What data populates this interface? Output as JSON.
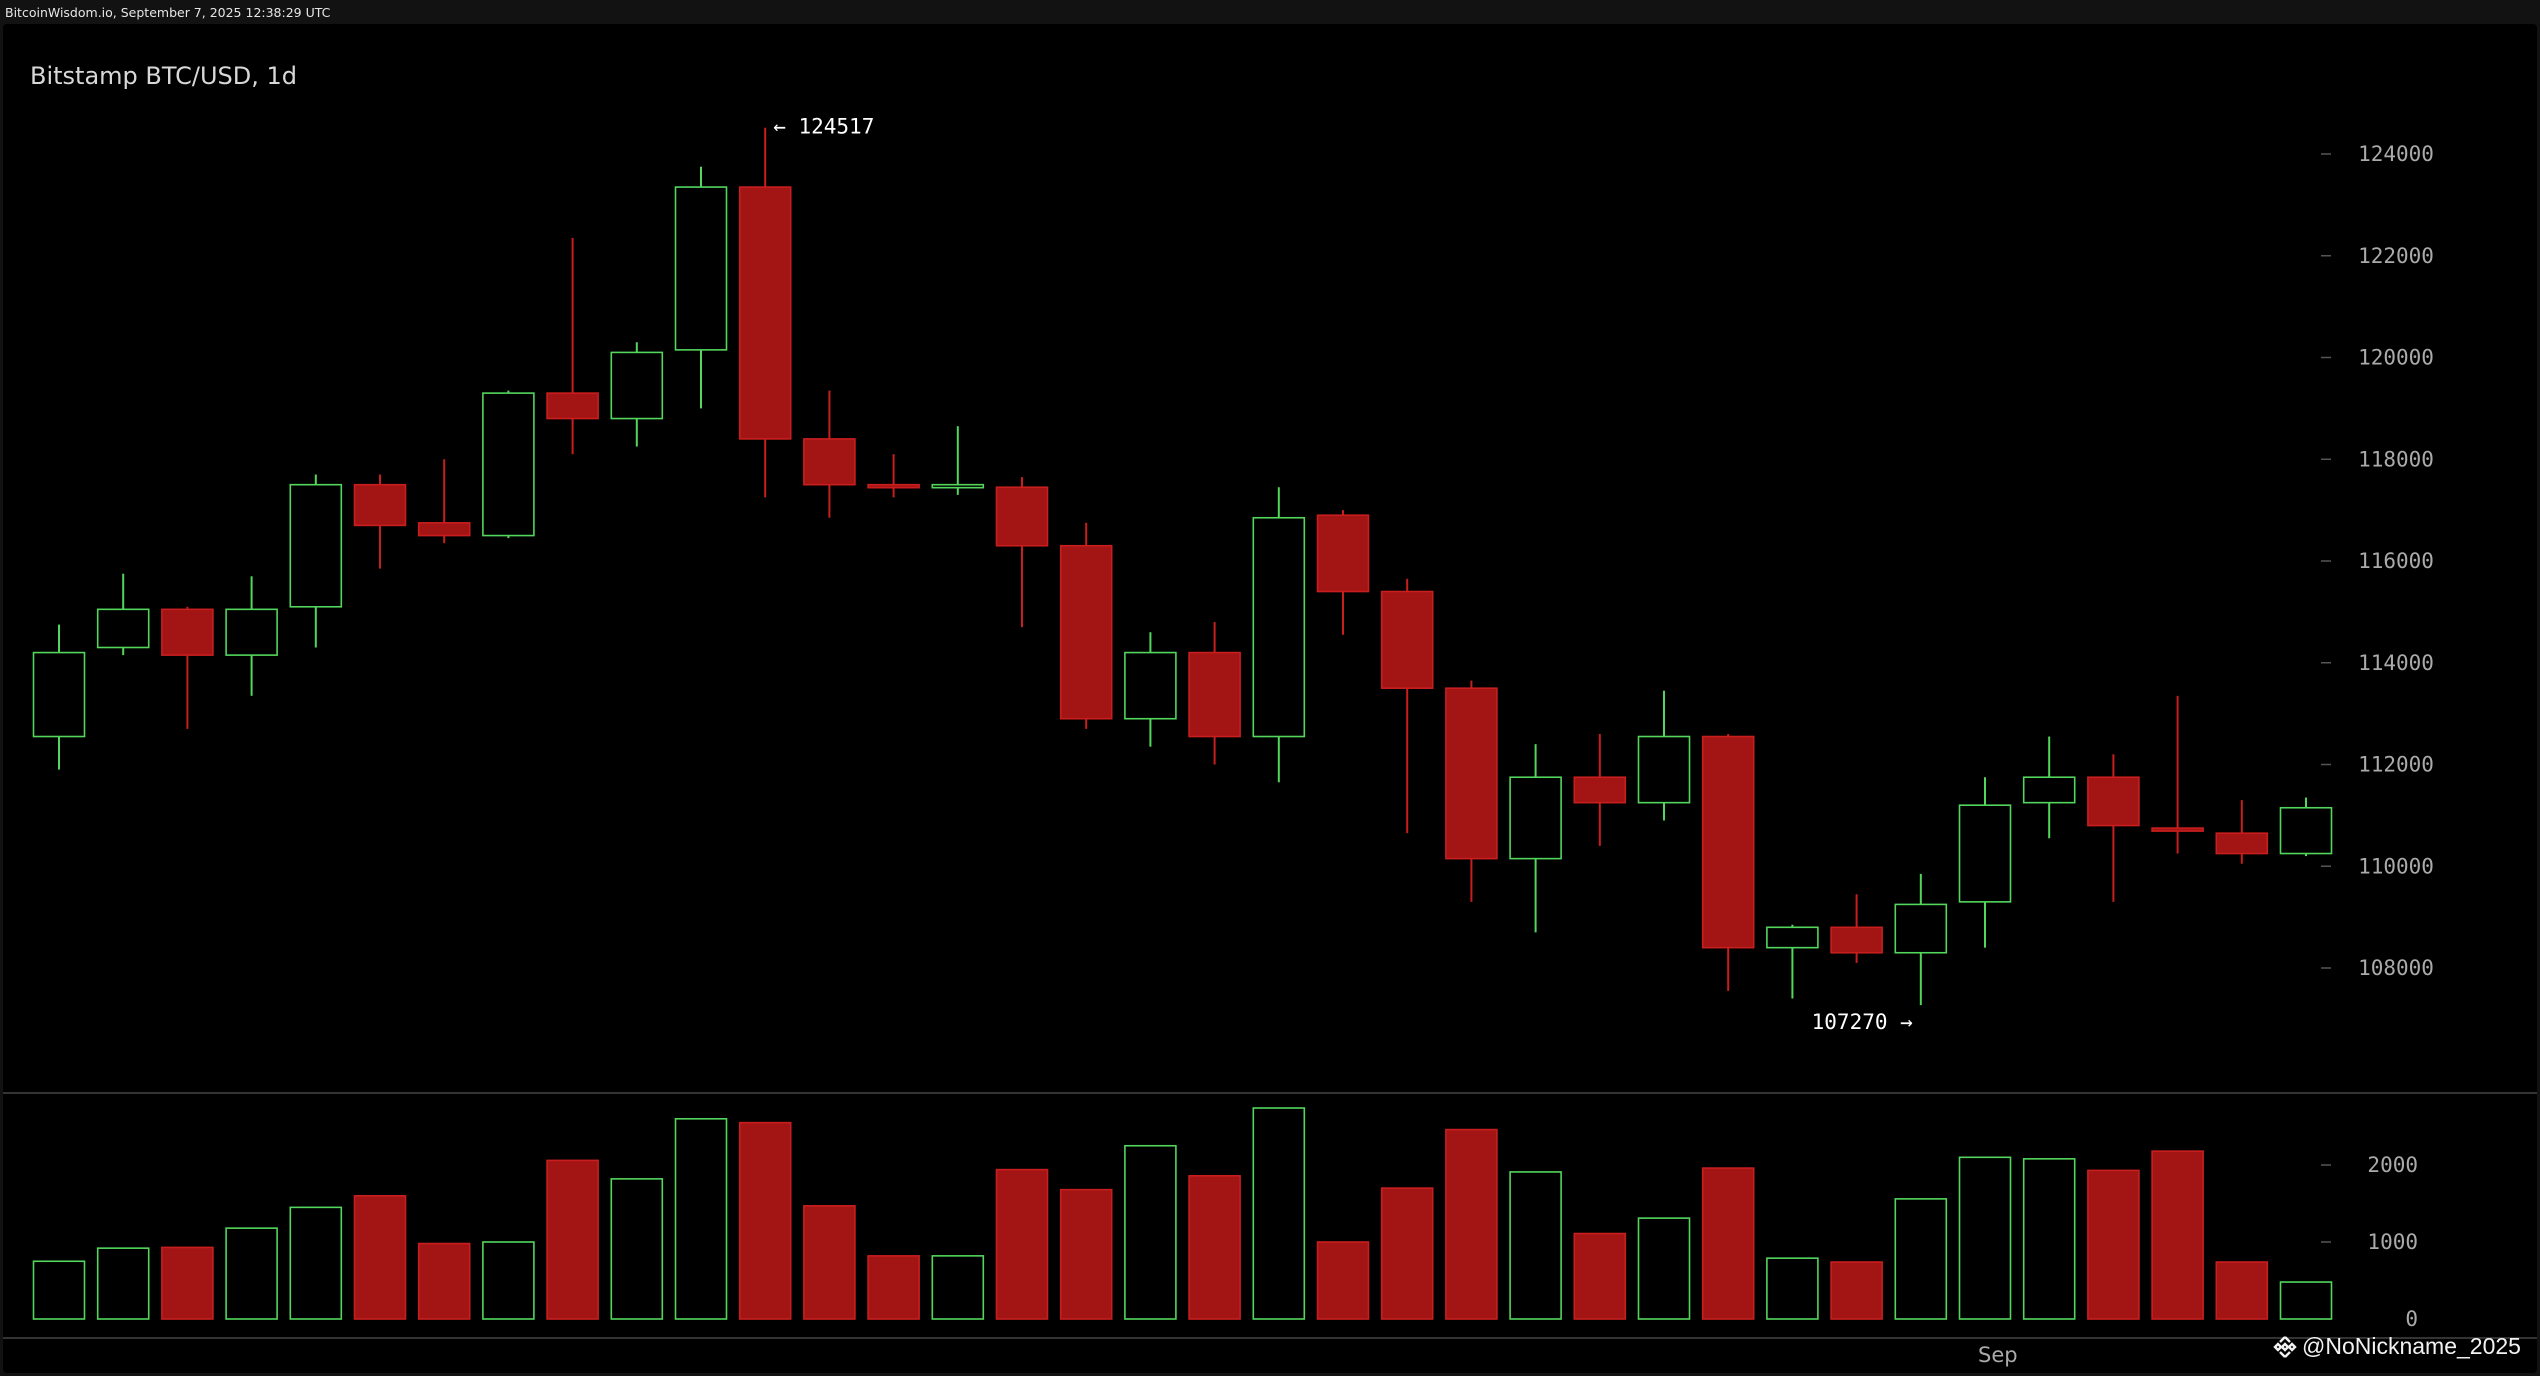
{
  "site_stamp": "BitcoinWisdom.io, September 7, 2025 12:38:29 UTC",
  "watermark": "@NoNickname_2025",
  "colors": {
    "background": "#000000",
    "up": "#52d65c",
    "down": "#a31414",
    "down_border": "#c81e1e",
    "axis_text": "#aaaaaa",
    "annotation": "#ffffff"
  },
  "chart_data": {
    "type": "candlestick",
    "title": "Bitstamp BTC/USD, 1d",
    "price_axis": {
      "ticks": [
        108000,
        110000,
        112000,
        114000,
        116000,
        118000,
        120000,
        122000,
        124000
      ]
    },
    "volume_axis": {
      "ticks": [
        0,
        1000,
        2000
      ]
    },
    "x_axis": {
      "labels": [
        {
          "text": "Sep",
          "index": 30.2
        }
      ]
    },
    "annotations": [
      {
        "text": "← 124517",
        "index": 11,
        "price": 124517,
        "side": "right"
      },
      {
        "text": "107270 →",
        "index": 29,
        "price": 107270,
        "side": "left"
      }
    ],
    "candles": [
      {
        "o": 112550,
        "h": 114750,
        "l": 111900,
        "c": 114200,
        "v": 750
      },
      {
        "o": 114300,
        "h": 115750,
        "l": 114150,
        "c": 115050,
        "v": 920
      },
      {
        "o": 115050,
        "h": 115100,
        "l": 112700,
        "c": 114150,
        "v": 930
      },
      {
        "o": 114150,
        "h": 115700,
        "l": 113350,
        "c": 115050,
        "v": 1180
      },
      {
        "o": 115100,
        "h": 117700,
        "l": 114300,
        "c": 117500,
        "v": 1450
      },
      {
        "o": 117500,
        "h": 117700,
        "l": 115850,
        "c": 116700,
        "v": 1600
      },
      {
        "o": 116750,
        "h": 118000,
        "l": 116350,
        "c": 116500,
        "v": 980
      },
      {
        "o": 116500,
        "h": 119350,
        "l": 116450,
        "c": 119300,
        "v": 1000
      },
      {
        "o": 119300,
        "h": 122350,
        "l": 118100,
        "c": 118800,
        "v": 2060
      },
      {
        "o": 118800,
        "h": 120300,
        "l": 118250,
        "c": 120100,
        "v": 1820
      },
      {
        "o": 120150,
        "h": 123750,
        "l": 119000,
        "c": 123350,
        "v": 2600
      },
      {
        "o": 123350,
        "h": 124517,
        "l": 117250,
        "c": 118400,
        "v": 2550
      },
      {
        "o": 118400,
        "h": 119350,
        "l": 116850,
        "c": 117500,
        "v": 1470
      },
      {
        "o": 117500,
        "h": 118100,
        "l": 117250,
        "c": 117450,
        "v": 820
      },
      {
        "o": 117450,
        "h": 118650,
        "l": 117300,
        "c": 117500,
        "v": 820
      },
      {
        "o": 117450,
        "h": 117650,
        "l": 114700,
        "c": 116300,
        "v": 1940
      },
      {
        "o": 116300,
        "h": 116750,
        "l": 112700,
        "c": 112900,
        "v": 1680
      },
      {
        "o": 112900,
        "h": 114600,
        "l": 112350,
        "c": 114200,
        "v": 2250
      },
      {
        "o": 114200,
        "h": 114800,
        "l": 112000,
        "c": 112550,
        "v": 1860
      },
      {
        "o": 112550,
        "h": 117450,
        "l": 111650,
        "c": 116850,
        "v": 2740
      },
      {
        "o": 116900,
        "h": 117000,
        "l": 114550,
        "c": 115400,
        "v": 1000
      },
      {
        "o": 115400,
        "h": 115650,
        "l": 110650,
        "c": 113500,
        "v": 1700
      },
      {
        "o": 113500,
        "h": 113650,
        "l": 109300,
        "c": 110150,
        "v": 2460
      },
      {
        "o": 110150,
        "h": 112400,
        "l": 108700,
        "c": 111750,
        "v": 1910
      },
      {
        "o": 111750,
        "h": 112600,
        "l": 110400,
        "c": 111250,
        "v": 1110
      },
      {
        "o": 111250,
        "h": 113450,
        "l": 110900,
        "c": 112550,
        "v": 1310
      },
      {
        "o": 112550,
        "h": 112600,
        "l": 107550,
        "c": 108400,
        "v": 1960
      },
      {
        "o": 108400,
        "h": 108850,
        "l": 107400,
        "c": 108800,
        "v": 790
      },
      {
        "o": 108800,
        "h": 109450,
        "l": 108100,
        "c": 108300,
        "v": 740
      },
      {
        "o": 108300,
        "h": 109850,
        "l": 107270,
        "c": 109250,
        "v": 1560
      },
      {
        "o": 109300,
        "h": 111750,
        "l": 108400,
        "c": 111200,
        "v": 2100
      },
      {
        "o": 111250,
        "h": 112550,
        "l": 110550,
        "c": 111750,
        "v": 2080
      },
      {
        "o": 111750,
        "h": 112200,
        "l": 109300,
        "c": 110800,
        "v": 1930
      },
      {
        "o": 110750,
        "h": 113350,
        "l": 110250,
        "c": 110700,
        "v": 2180
      },
      {
        "o": 110650,
        "h": 111300,
        "l": 110050,
        "c": 110250,
        "v": 740
      },
      {
        "o": 110250,
        "h": 111350,
        "l": 110200,
        "c": 111150,
        "v": 480
      }
    ]
  }
}
